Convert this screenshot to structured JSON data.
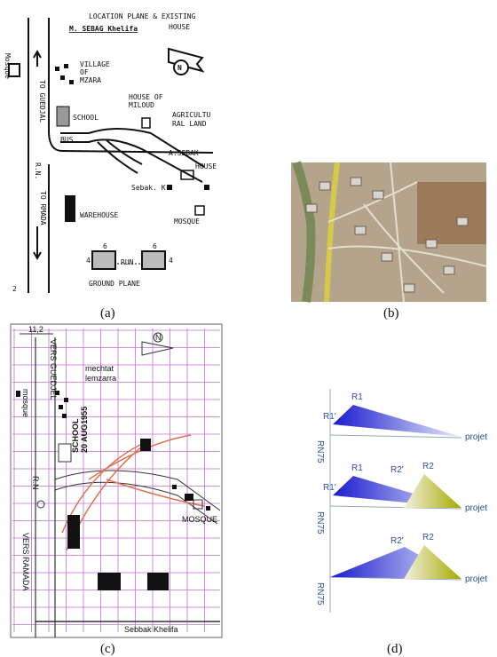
{
  "panel_a": {
    "caption": "(a)",
    "title": "LOCATION PLANE & EXISTING",
    "title_2": "HOUSE",
    "owner": "M. SEBAG Khelifa",
    "mosque_left": "Mosque",
    "road_north": "TO GUEDJAL",
    "road": "R.N.",
    "road_south": "TO RMADA",
    "village": [
      "VILLAGE",
      "OF",
      "MZARA"
    ],
    "school": "SCHOOL",
    "bus": "BUS",
    "miloud": [
      "HOUSE OF",
      "MILOUD"
    ],
    "agri": [
      "AGRICULTU",
      "RAL LAND"
    ],
    "asebak": "A.SEBAK",
    "house": "HOUSE",
    "sebak_k": "Sebak. K",
    "warehouse": "WAREHOUSE",
    "mosque_right": "MOSQUE",
    "run": "RUN",
    "dims": [
      "6",
      "6",
      "4",
      "4"
    ],
    "ground": "GROUND PLANE",
    "north": "N",
    "page": "2"
  },
  "panel_b": {
    "caption": "(b)"
  },
  "panel_c": {
    "caption": "(c)",
    "scale": "11,2",
    "road_north": "VERS GUEDJEL",
    "village": [
      "mechtat",
      "lemzarra"
    ],
    "mosque_left": "mosque",
    "school": [
      "SCHOOL",
      "20 AUG1955"
    ],
    "road": "R.N",
    "mosque_right": "MOSQUE",
    "road_south": "VERS RAMADA",
    "owner": "Sebbak Khelifa",
    "north": "N"
  },
  "panel_d": {
    "caption": "(d)",
    "diagrams": [
      {
        "labels": [
          "R1",
          "R1'"
        ],
        "target": "projet",
        "road": "RN75"
      },
      {
        "labels": [
          "R1",
          "R1'",
          "R2'",
          "R2"
        ],
        "target": "projet",
        "road": "RN75"
      },
      {
        "labels": [
          "R2'",
          "R2"
        ],
        "target": "projet",
        "road": "RN75"
      }
    ]
  }
}
